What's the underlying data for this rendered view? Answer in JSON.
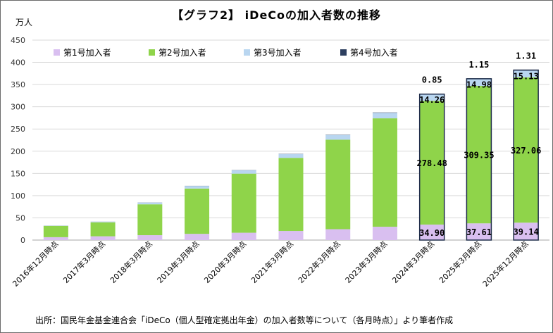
{
  "chart_data": {
    "type": "bar",
    "stacked": true,
    "title": "【グラフ2】 iDeCoの加入者数の推移",
    "y_unit": "万人",
    "ylim": [
      0,
      450
    ],
    "y_ticks": [
      0,
      50,
      100,
      150,
      200,
      250,
      300,
      350,
      400,
      450
    ],
    "grid": true,
    "legend_position": "top",
    "categories": [
      "2016年12月時点",
      "2017年3月時点",
      "2018年3月時点",
      "2019年3月時点",
      "2020年3月時点",
      "2021年3月時点",
      "2022年3月時点",
      "2023年3月時点",
      "2024年3月時点",
      "2025年3月時点",
      "2025年12月時点"
    ],
    "series": [
      {
        "name": "第1号加入者",
        "color": "#d9bff0",
        "values": [
          6.5,
          8.5,
          11.0,
          14.0,
          16.5,
          20.5,
          24.5,
          30.0,
          34.9,
          37.61,
          39.14
        ],
        "labels": [
          "",
          "",
          "",
          "",
          "",
          "",
          "",
          "",
          "34.90",
          "37.61",
          "39.14"
        ]
      },
      {
        "name": "第2号加入者",
        "color": "#8fd44a",
        "values": [
          25.5,
          31.5,
          69.5,
          102.0,
          133.0,
          164.5,
          201.5,
          244.0,
          278.48,
          309.35,
          327.06
        ],
        "labels": [
          "",
          "",
          "",
          "",
          "",
          "",
          "",
          "",
          "278.48",
          "309.35",
          "327.06"
        ]
      },
      {
        "name": "第3号加入者",
        "color": "#b9d6f0",
        "values": [
          0.6,
          1.5,
          4.0,
          5.8,
          7.5,
          8.5,
          10.5,
          12.5,
          14.26,
          14.98,
          15.13
        ],
        "labels": [
          "",
          "",
          "",
          "",
          "",
          "",
          "",
          "",
          "14.26",
          "14.98",
          "15.13"
        ]
      },
      {
        "name": "第4号加入者",
        "color": "#2d3f5f",
        "values": [
          0.1,
          0.1,
          0.2,
          0.3,
          0.4,
          0.5,
          0.6,
          0.7,
          0.85,
          1.15,
          1.31
        ],
        "labels": [
          "",
          "",
          "",
          "",
          "",
          "",
          "",
          "",
          "0.85",
          "1.15",
          "1.31"
        ]
      }
    ]
  },
  "source": "出所：国民年金基金連合会「iDeCo（個人型確定拠出年金）の加入者数等について（各月時点）」より筆者作成"
}
